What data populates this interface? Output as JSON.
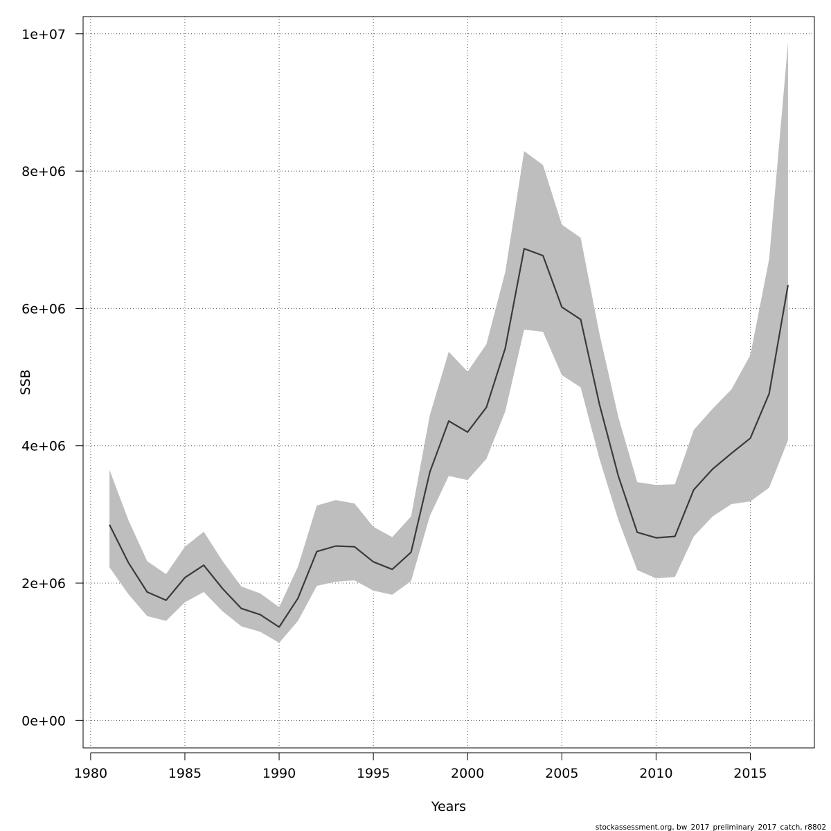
{
  "chart_data": {
    "type": "line",
    "xlabel": "Years",
    "ylabel": "SSB",
    "xlim": [
      1979.6,
      2018.4
    ],
    "ylim": [
      -400000,
      10250000
    ],
    "x_ticks": [
      1980,
      1985,
      1990,
      1995,
      2000,
      2005,
      2010,
      2015
    ],
    "x_tick_labels": [
      "1980",
      "1985",
      "1990",
      "1995",
      "2000",
      "2005",
      "2010",
      "2015"
    ],
    "y_ticks": [
      0,
      2000000,
      4000000,
      6000000,
      8000000,
      10000000
    ],
    "y_tick_labels": [
      "0e+00",
      "2e+06",
      "4e+06",
      "6e+06",
      "8e+06",
      "1e+07"
    ],
    "grid": true,
    "credit": "stockassessment.org, bw_2017_preliminary_2017_catch, r8802",
    "colors": {
      "band": "#bebebe",
      "line": "#3a3a3a",
      "grid": "#555555"
    },
    "years": [
      1981,
      1982,
      1983,
      1984,
      1985,
      1986,
      1987,
      1988,
      1989,
      1990,
      1991,
      1992,
      1993,
      1994,
      1995,
      1996,
      1997,
      1998,
      1999,
      2000,
      2001,
      2002,
      2003,
      2004,
      2005,
      2006,
      2007,
      2008,
      2009,
      2010,
      2011,
      2012,
      2013,
      2014,
      2015,
      2016,
      2017
    ],
    "series": [
      {
        "role": "estimate",
        "values": [
          2850000,
          2300000,
          1870000,
          1750000,
          2080000,
          2260000,
          1920000,
          1630000,
          1540000,
          1360000,
          1780000,
          2460000,
          2540000,
          2530000,
          2310000,
          2200000,
          2450000,
          3620000,
          4360000,
          4200000,
          4560000,
          5420000,
          6870000,
          6770000,
          6020000,
          5840000,
          4600000,
          3560000,
          2740000,
          2660000,
          2680000,
          3360000,
          3660000,
          3890000,
          4110000,
          4760000,
          6340000
        ]
      },
      {
        "role": "upper",
        "values": [
          3650000,
          2920000,
          2320000,
          2130000,
          2530000,
          2750000,
          2320000,
          1950000,
          1850000,
          1650000,
          2240000,
          3130000,
          3210000,
          3160000,
          2820000,
          2670000,
          2970000,
          4450000,
          5370000,
          5080000,
          5480000,
          6530000,
          8290000,
          8090000,
          7220000,
          7030000,
          5630000,
          4420000,
          3470000,
          3430000,
          3440000,
          4230000,
          4540000,
          4820000,
          5320000,
          6720000,
          9870000
        ]
      },
      {
        "role": "lower",
        "values": [
          2230000,
          1840000,
          1520000,
          1450000,
          1720000,
          1870000,
          1590000,
          1370000,
          1290000,
          1130000,
          1450000,
          1960000,
          2020000,
          2040000,
          1890000,
          1830000,
          2030000,
          2980000,
          3560000,
          3500000,
          3810000,
          4500000,
          5690000,
          5660000,
          5030000,
          4850000,
          3810000,
          2920000,
          2190000,
          2070000,
          2090000,
          2680000,
          2970000,
          3150000,
          3190000,
          3390000,
          4080000
        ]
      }
    ]
  }
}
